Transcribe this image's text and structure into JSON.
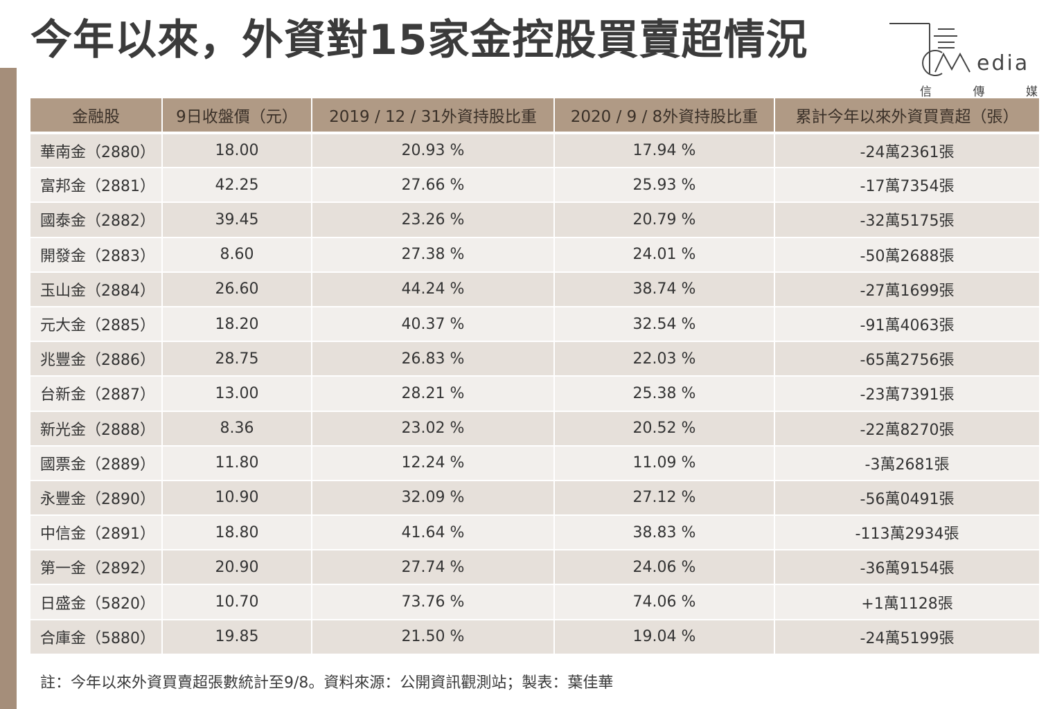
{
  "title": "今年以來，外資對15家金控股買賣超情況",
  "logo": {
    "word": "edia",
    "sub": [
      "信",
      "傳",
      "媒"
    ]
  },
  "colors": {
    "header_bg": "#b09a85",
    "row_odd": "#e6e0da",
    "row_even": "#f2efec",
    "side_bar": "#a58e7a"
  },
  "table": {
    "headers": [
      "金融股",
      "9日收盤價（元）",
      "2019 / 12 / 31外資持股比重",
      "2020 / 9 / 8外資持股比重",
      "累計今年以來外資買賣超（張）"
    ],
    "rows": [
      [
        "華南金（2880）",
        "18.00",
        "20.93 %",
        "17.94 %",
        "-24萬2361張"
      ],
      [
        "富邦金（2881）",
        "42.25",
        "27.66 %",
        "25.93 %",
        "-17萬7354張"
      ],
      [
        "國泰金（2882）",
        "39.45",
        "23.26 %",
        "20.79 %",
        "-32萬5175張"
      ],
      [
        "開發金（2883）",
        "8.60",
        "27.38 %",
        "24.01 %",
        "-50萬2688張"
      ],
      [
        "玉山金（2884）",
        "26.60",
        "44.24 %",
        "38.74 %",
        "-27萬1699張"
      ],
      [
        "元大金（2885）",
        "18.20",
        "40.37 %",
        "32.54 %",
        "-91萬4063張"
      ],
      [
        "兆豐金（2886）",
        "28.75",
        "26.83 %",
        "22.03 %",
        "-65萬2756張"
      ],
      [
        "台新金（2887）",
        "13.00",
        "28.21 %",
        "25.38 %",
        "-23萬7391張"
      ],
      [
        "新光金（2888）",
        "8.36",
        "23.02 %",
        "20.52 %",
        "-22萬8270張"
      ],
      [
        "國票金（2889）",
        "11.80",
        "12.24 %",
        "11.09 %",
        "-3萬2681張"
      ],
      [
        "永豐金（2890）",
        "10.90",
        "32.09 %",
        "27.12 %",
        "-56萬0491張"
      ],
      [
        "中信金（2891）",
        "18.80",
        "41.64 %",
        "38.83 %",
        "-113萬2934張"
      ],
      [
        "第一金（2892）",
        "20.90",
        "27.74 %",
        "24.06 %",
        "-36萬9154張"
      ],
      [
        "日盛金（5820）",
        "10.70",
        "73.76 %",
        "74.06 %",
        "+1萬1128張"
      ],
      [
        "合庫金（5880）",
        "19.85",
        "21.50 %",
        "19.04 %",
        "-24萬5199張"
      ]
    ]
  },
  "footnote": "註：今年以來外資買賣超張數統計至9/8。資料來源：公開資訊觀測站；製表：葉佳華"
}
